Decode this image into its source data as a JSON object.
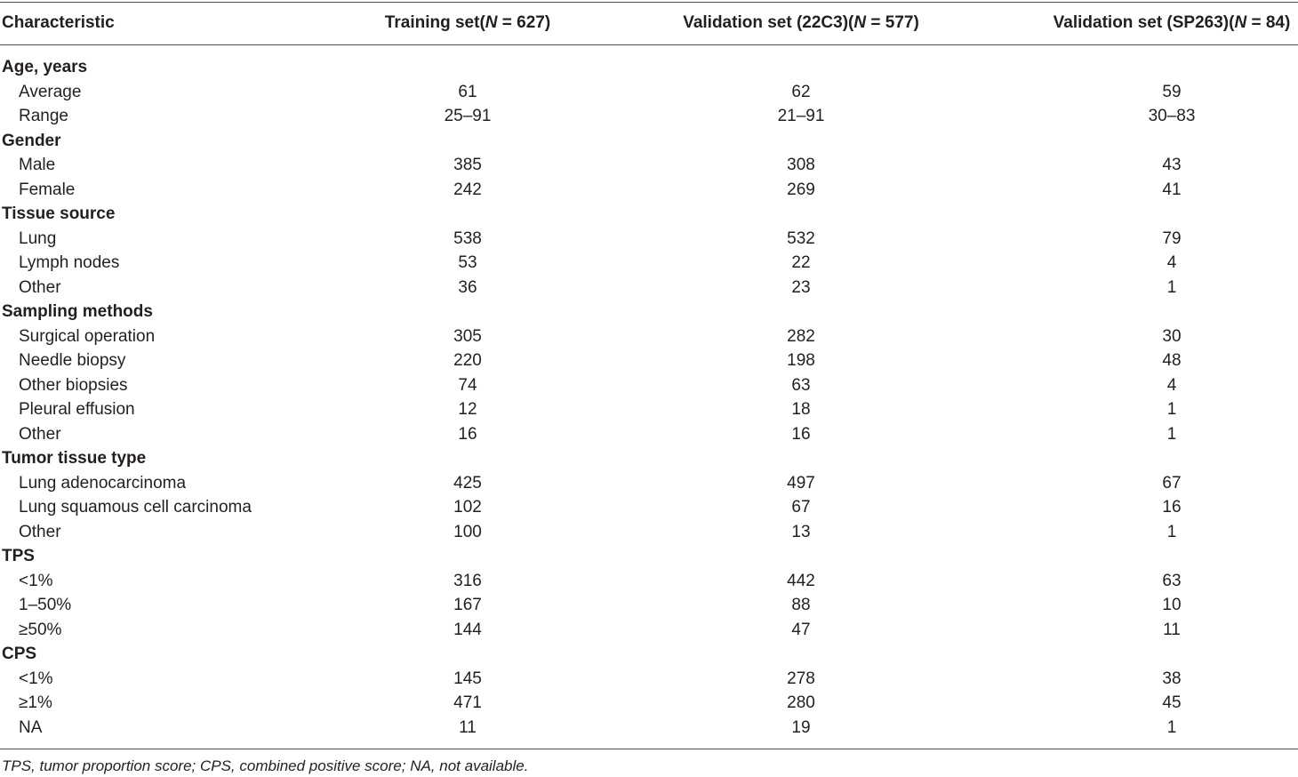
{
  "table": {
    "columns": [
      {
        "text": "Characteristic"
      },
      {
        "pre": "Training set(",
        "n": "N",
        "post": " = 627)"
      },
      {
        "pre": "Validation set (22C3)(",
        "n": "N",
        "post": " = 577)"
      },
      {
        "pre": "Validation set (SP263)(",
        "n": "N",
        "post": " = 84)"
      }
    ],
    "sections": [
      {
        "title": "Age, years",
        "rows": [
          [
            "Average",
            61,
            62,
            59
          ],
          [
            "Range",
            "25–91",
            "21–91",
            "30–83"
          ]
        ]
      },
      {
        "title": "Gender",
        "rows": [
          [
            "Male",
            385,
            308,
            43
          ],
          [
            "Female",
            242,
            269,
            41
          ]
        ]
      },
      {
        "title": "Tissue source",
        "rows": [
          [
            "Lung",
            538,
            532,
            79
          ],
          [
            "Lymph nodes",
            53,
            22,
            4
          ],
          [
            "Other",
            36,
            23,
            1
          ]
        ]
      },
      {
        "title": "Sampling methods",
        "rows": [
          [
            "Surgical operation",
            305,
            282,
            30
          ],
          [
            "Needle biopsy",
            220,
            198,
            48
          ],
          [
            "Other biopsies",
            74,
            63,
            4
          ],
          [
            "Pleural effusion",
            12,
            18,
            1
          ],
          [
            "Other",
            16,
            16,
            1
          ]
        ]
      },
      {
        "title": "Tumor tissue type",
        "rows": [
          [
            "Lung adenocarcinoma",
            425,
            497,
            67
          ],
          [
            "Lung squamous cell carcinoma",
            102,
            67,
            16
          ],
          [
            "Other",
            100,
            13,
            1
          ]
        ]
      },
      {
        "title": "TPS",
        "rows": [
          [
            "<1%",
            316,
            442,
            63
          ],
          [
            "1–50%",
            167,
            88,
            10
          ],
          [
            "≥50%",
            144,
            47,
            11
          ]
        ]
      },
      {
        "title": "CPS",
        "rows": [
          [
            "<1%",
            145,
            278,
            38
          ],
          [
            "≥1%",
            471,
            280,
            45
          ],
          [
            "NA",
            11,
            19,
            1
          ]
        ]
      }
    ],
    "footnote": "TPS, tumor proportion score; CPS, combined positive score; NA, not available."
  }
}
